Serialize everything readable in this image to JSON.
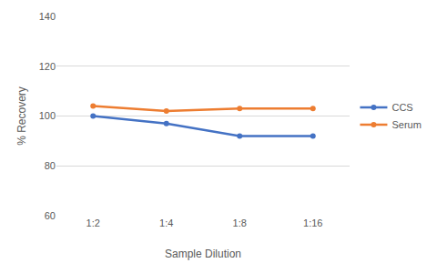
{
  "chart_data": {
    "type": "line",
    "x_label": "Sample Dilution",
    "y_label": "% Recovery",
    "categories": [
      "1:2",
      "1:4",
      "1:8",
      "1:16"
    ],
    "series": [
      {
        "name": "CCS",
        "color": "#4472c4",
        "values": [
          100,
          97,
          92,
          92
        ]
      },
      {
        "name": "Serum",
        "color": "#ed7d31",
        "values": [
          104,
          102,
          103,
          103
        ]
      }
    ],
    "ylim": [
      60,
      140
    ],
    "yticks": [
      60,
      80,
      100,
      120,
      140
    ],
    "grid": true,
    "legend": "right",
    "marker": "circle"
  }
}
